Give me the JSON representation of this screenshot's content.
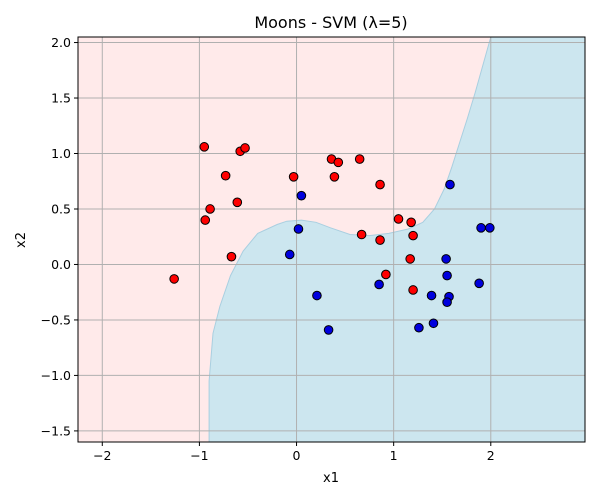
{
  "chart_data": {
    "type": "scatter",
    "title": "Moons - SVM (λ=5)",
    "xlabel": "x1",
    "ylabel": "x2",
    "xlim": [
      -2.25,
      2.97
    ],
    "ylim": [
      -1.6,
      2.05
    ],
    "xticks": [
      -2,
      -1,
      0,
      1,
      2
    ],
    "xtick_labels": [
      "−2",
      "−1",
      "0",
      "1",
      "2"
    ],
    "yticks": [
      -1.5,
      -1.0,
      -0.5,
      0.0,
      0.5,
      1.0,
      1.5,
      2.0
    ],
    "ytick_labels": [
      "−1.5",
      "−1.0",
      "−0.5",
      "0.0",
      "0.5",
      "1.0",
      "1.5",
      "2.0"
    ],
    "grid": true,
    "colors": {
      "class0_fill": "#ff0000",
      "class1_fill": "#0000dd",
      "region0": "#ffeaea",
      "region1": "#cce6ef",
      "boundary": "#a9cfe0",
      "grid": "#b0b0b0",
      "marker_edge": "#000000"
    },
    "decision_boundary": [
      [
        -0.9,
        -1.6
      ],
      [
        -0.9,
        -1.05
      ],
      [
        -0.86,
        -0.62
      ],
      [
        -0.79,
        -0.38
      ],
      [
        -0.68,
        -0.1
      ],
      [
        -0.55,
        0.12
      ],
      [
        -0.4,
        0.28
      ],
      [
        -0.2,
        0.36
      ],
      [
        -0.1,
        0.39
      ],
      [
        0.05,
        0.4
      ],
      [
        0.2,
        0.38
      ],
      [
        0.35,
        0.33
      ],
      [
        0.55,
        0.27
      ],
      [
        0.75,
        0.26
      ],
      [
        0.95,
        0.28
      ],
      [
        1.15,
        0.32
      ],
      [
        1.3,
        0.38
      ],
      [
        1.42,
        0.5
      ],
      [
        1.52,
        0.68
      ],
      [
        1.6,
        0.88
      ],
      [
        1.68,
        1.1
      ],
      [
        1.76,
        1.32
      ],
      [
        1.84,
        1.55
      ],
      [
        1.92,
        1.8
      ],
      [
        2.0,
        2.05
      ]
    ],
    "series": [
      {
        "class": 0,
        "points": [
          [
            -0.95,
            1.06
          ],
          [
            -0.58,
            1.02
          ],
          [
            -0.53,
            1.05
          ],
          [
            -0.73,
            0.8
          ],
          [
            -0.03,
            0.79
          ],
          [
            0.36,
            0.95
          ],
          [
            0.43,
            0.92
          ],
          [
            0.65,
            0.95
          ],
          [
            0.39,
            0.79
          ],
          [
            0.86,
            0.72
          ],
          [
            -0.61,
            0.56
          ],
          [
            -0.89,
            0.5
          ],
          [
            -0.94,
            0.4
          ],
          [
            1.05,
            0.41
          ],
          [
            1.18,
            0.38
          ],
          [
            0.67,
            0.27
          ],
          [
            0.86,
            0.22
          ],
          [
            1.2,
            0.26
          ],
          [
            -0.67,
            0.07
          ],
          [
            1.17,
            0.05
          ],
          [
            0.92,
            -0.09
          ],
          [
            -1.26,
            -0.13
          ],
          [
            1.2,
            -0.23
          ]
        ]
      },
      {
        "class": 1,
        "points": [
          [
            1.58,
            0.72
          ],
          [
            0.05,
            0.62
          ],
          [
            0.02,
            0.32
          ],
          [
            1.9,
            0.33
          ],
          [
            1.99,
            0.33
          ],
          [
            -0.07,
            0.09
          ],
          [
            1.54,
            0.05
          ],
          [
            1.55,
            -0.1
          ],
          [
            1.88,
            -0.17
          ],
          [
            0.85,
            -0.18
          ],
          [
            0.21,
            -0.28
          ],
          [
            1.39,
            -0.28
          ],
          [
            1.57,
            -0.29
          ],
          [
            1.55,
            -0.34
          ],
          [
            1.41,
            -0.53
          ],
          [
            1.26,
            -0.57
          ],
          [
            0.33,
            -0.59
          ]
        ]
      }
    ]
  }
}
